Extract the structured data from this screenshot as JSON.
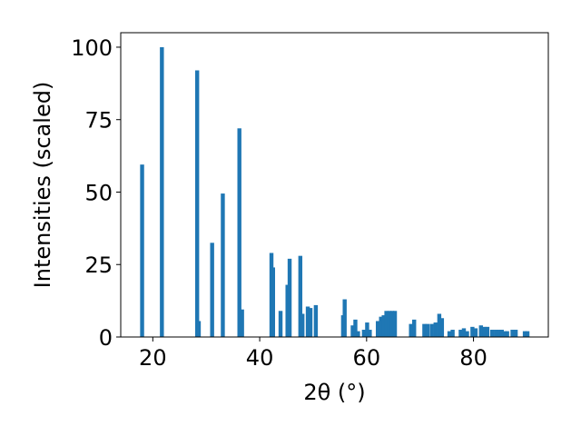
{
  "chart_data": {
    "type": "bar",
    "title": "",
    "xlabel": "2θ (°)",
    "ylabel": "Intensities (scaled)",
    "xlim": [
      14,
      94
    ],
    "ylim": [
      0,
      105
    ],
    "xticks": [
      20,
      40,
      60,
      80
    ],
    "yticks": [
      0,
      25,
      50,
      75,
      100
    ],
    "grid": false,
    "bar_color": "#1f77b4",
    "bar_width": 0.75,
    "x": [
      18.0,
      21.7,
      28.3,
      28.6,
      31.1,
      33.1,
      36.2,
      36.7,
      42.2,
      42.5,
      43.9,
      45.2,
      45.6,
      47.6,
      48.0,
      49.0,
      49.5,
      50.5,
      55.6,
      55.9,
      57.4,
      57.9,
      58.4,
      59.5,
      60.1,
      60.6,
      62.1,
      62.7,
      63.2,
      63.7,
      64.3,
      64.8,
      65.3,
      68.3,
      68.9,
      70.8,
      71.4,
      72.2,
      72.9,
      73.6,
      74.1,
      75.5,
      76.1,
      77.6,
      78.2,
      78.8,
      79.8,
      80.4,
      81.4,
      82.0,
      82.6,
      83.5,
      84.2,
      84.7,
      85.3,
      85.9,
      86.3,
      87.3,
      87.9,
      89.6,
      90.1
    ],
    "values": [
      59.5,
      100.0,
      92.0,
      5.5,
      32.5,
      49.5,
      72.0,
      9.5,
      29.0,
      24.0,
      9.0,
      18.0,
      27.0,
      28.0,
      8.0,
      10.5,
      10.0,
      11.0,
      7.5,
      13.0,
      4.0,
      6.0,
      2.0,
      2.5,
      5.0,
      2.5,
      5.5,
      7.0,
      7.5,
      9.0,
      9.0,
      9.0,
      9.0,
      4.5,
      6.0,
      4.5,
      4.5,
      4.5,
      5.0,
      8.0,
      6.5,
      2.0,
      2.5,
      2.5,
      3.0,
      2.0,
      3.5,
      3.0,
      4.0,
      3.5,
      3.5,
      2.5,
      2.5,
      2.5,
      2.5,
      2.0,
      2.0,
      2.5,
      2.5,
      2.0,
      2.0
    ]
  }
}
